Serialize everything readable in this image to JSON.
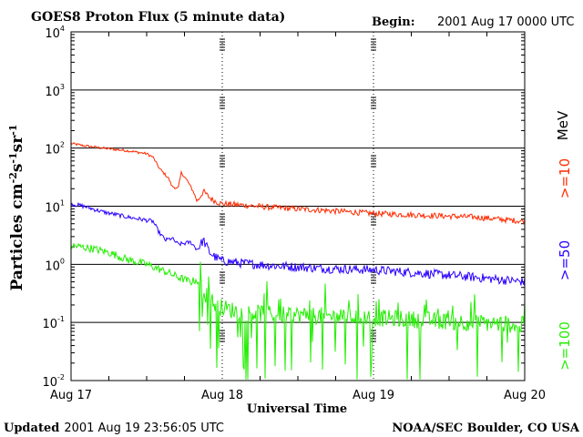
{
  "chart_data": {
    "type": "line",
    "title": "GOES8 Proton Flux (5 minute data)",
    "begin_label": "Begin:",
    "begin_value": "2001 Aug 17 0000 UTC",
    "xlabel": "Universal Time",
    "ylabel_parts": [
      "Particles cm",
      "-2",
      "s",
      "-1",
      "sr",
      "-1"
    ],
    "y_scale": "log",
    "ylim": [
      0.01,
      10000
    ],
    "y_ticks": [
      {
        "value": 10000,
        "mantissa": "10",
        "exp": "4"
      },
      {
        "value": 1000,
        "mantissa": "10",
        "exp": "3"
      },
      {
        "value": 100,
        "mantissa": "10",
        "exp": "2"
      },
      {
        "value": 10,
        "mantissa": "10",
        "exp": "1"
      },
      {
        "value": 1,
        "mantissa": "10",
        "exp": "0"
      },
      {
        "value": 0.1,
        "mantissa": "10",
        "exp": "-1"
      },
      {
        "value": 0.01,
        "mantissa": "10",
        "exp": "-2"
      }
    ],
    "xlim_hours": [
      0,
      72
    ],
    "x_ticks": [
      {
        "hour": 0,
        "label": "Aug 17"
      },
      {
        "hour": 24,
        "label": "Aug 18"
      },
      {
        "hour": 48,
        "label": "Aug 19"
      },
      {
        "hour": 72,
        "label": "Aug 20"
      }
    ],
    "unit_label": "MeV",
    "series": [
      {
        "name": ">=10",
        "color": "#ff2a00",
        "noise": 0.05,
        "spikes": false,
        "x": [
          0,
          2,
          5,
          9,
          12,
          13,
          14,
          15.5,
          16,
          17,
          17.5,
          18.5,
          19.5,
          20,
          21,
          22,
          23,
          24,
          27,
          32,
          40,
          48,
          56,
          64,
          72
        ],
        "y": [
          120,
          110,
          100,
          90,
          80,
          70,
          45,
          30,
          22,
          20,
          38,
          27,
          17,
          12,
          18,
          14,
          12,
          11,
          10.5,
          9.5,
          8.5,
          7.5,
          7,
          6.5,
          5.5
        ]
      },
      {
        "name": ">=50",
        "color": "#2a00ff",
        "noise": 0.08,
        "spikes": false,
        "x": [
          0,
          2,
          5,
          9,
          13,
          14,
          15,
          16,
          17,
          19,
          20,
          21,
          22,
          23,
          24,
          27,
          32,
          40,
          48,
          56,
          64,
          72
        ],
        "y": [
          11,
          10,
          8,
          6.5,
          5.5,
          3.5,
          2.6,
          2.8,
          2.2,
          2.4,
          1.8,
          2.6,
          1.6,
          1.3,
          1.15,
          1.05,
          0.95,
          0.85,
          0.8,
          0.7,
          0.6,
          0.5
        ]
      },
      {
        "name": ">=100",
        "color": "#22ee00",
        "noise": 0.15,
        "spikes": true,
        "x": [
          0,
          3,
          6,
          9,
          12,
          15,
          17,
          19,
          20,
          21,
          22,
          23,
          24,
          27,
          32,
          40,
          48,
          56,
          64,
          72
        ],
        "y": [
          2.1,
          1.9,
          1.6,
          1.2,
          1.0,
          0.75,
          0.6,
          0.5,
          0.55,
          0.35,
          0.25,
          0.2,
          0.18,
          0.15,
          0.14,
          0.13,
          0.12,
          0.11,
          0.1,
          0.09
        ]
      }
    ]
  },
  "footer": {
    "updated_label": "Updated",
    "updated_value": "2001 Aug 19 23:56:05 UTC",
    "source": "NOAA/SEC Boulder, CO USA"
  }
}
